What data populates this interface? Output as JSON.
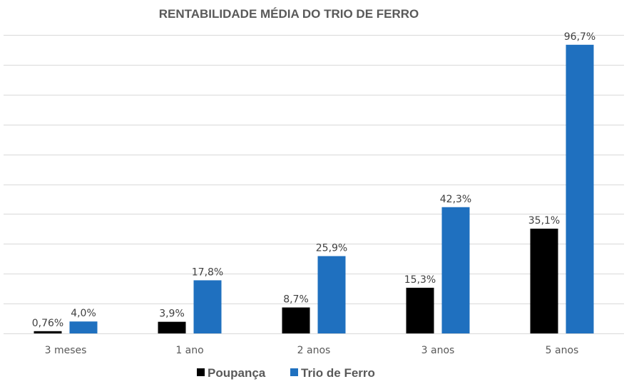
{
  "chart_data": {
    "type": "bar",
    "title": "RENTABILIDADE MÉDIA DO TRIO DE FERRO",
    "categories": [
      "3 meses",
      "1 ano",
      "2 anos",
      "3 anos",
      "5 anos"
    ],
    "series": [
      {
        "name": "Poupança",
        "color": "#000000",
        "values": [
          0.76,
          3.9,
          8.7,
          15.3,
          35.1
        ],
        "labels": [
          "0,76%",
          "3,9%",
          "8,7%",
          "15,3%",
          "35,1%"
        ]
      },
      {
        "name": "Trio de Ferro",
        "color": "#1f70bf",
        "values": [
          4.0,
          17.8,
          25.9,
          42.3,
          96.7
        ],
        "labels": [
          "4,0%",
          "17,8%",
          "25,9%",
          "42,3%",
          "96,7%"
        ]
      }
    ],
    "xlabel": "",
    "ylabel": "",
    "ylim": [
      0,
      100
    ],
    "ytick_step": 10,
    "grid": true,
    "legend": "bottom-center"
  }
}
